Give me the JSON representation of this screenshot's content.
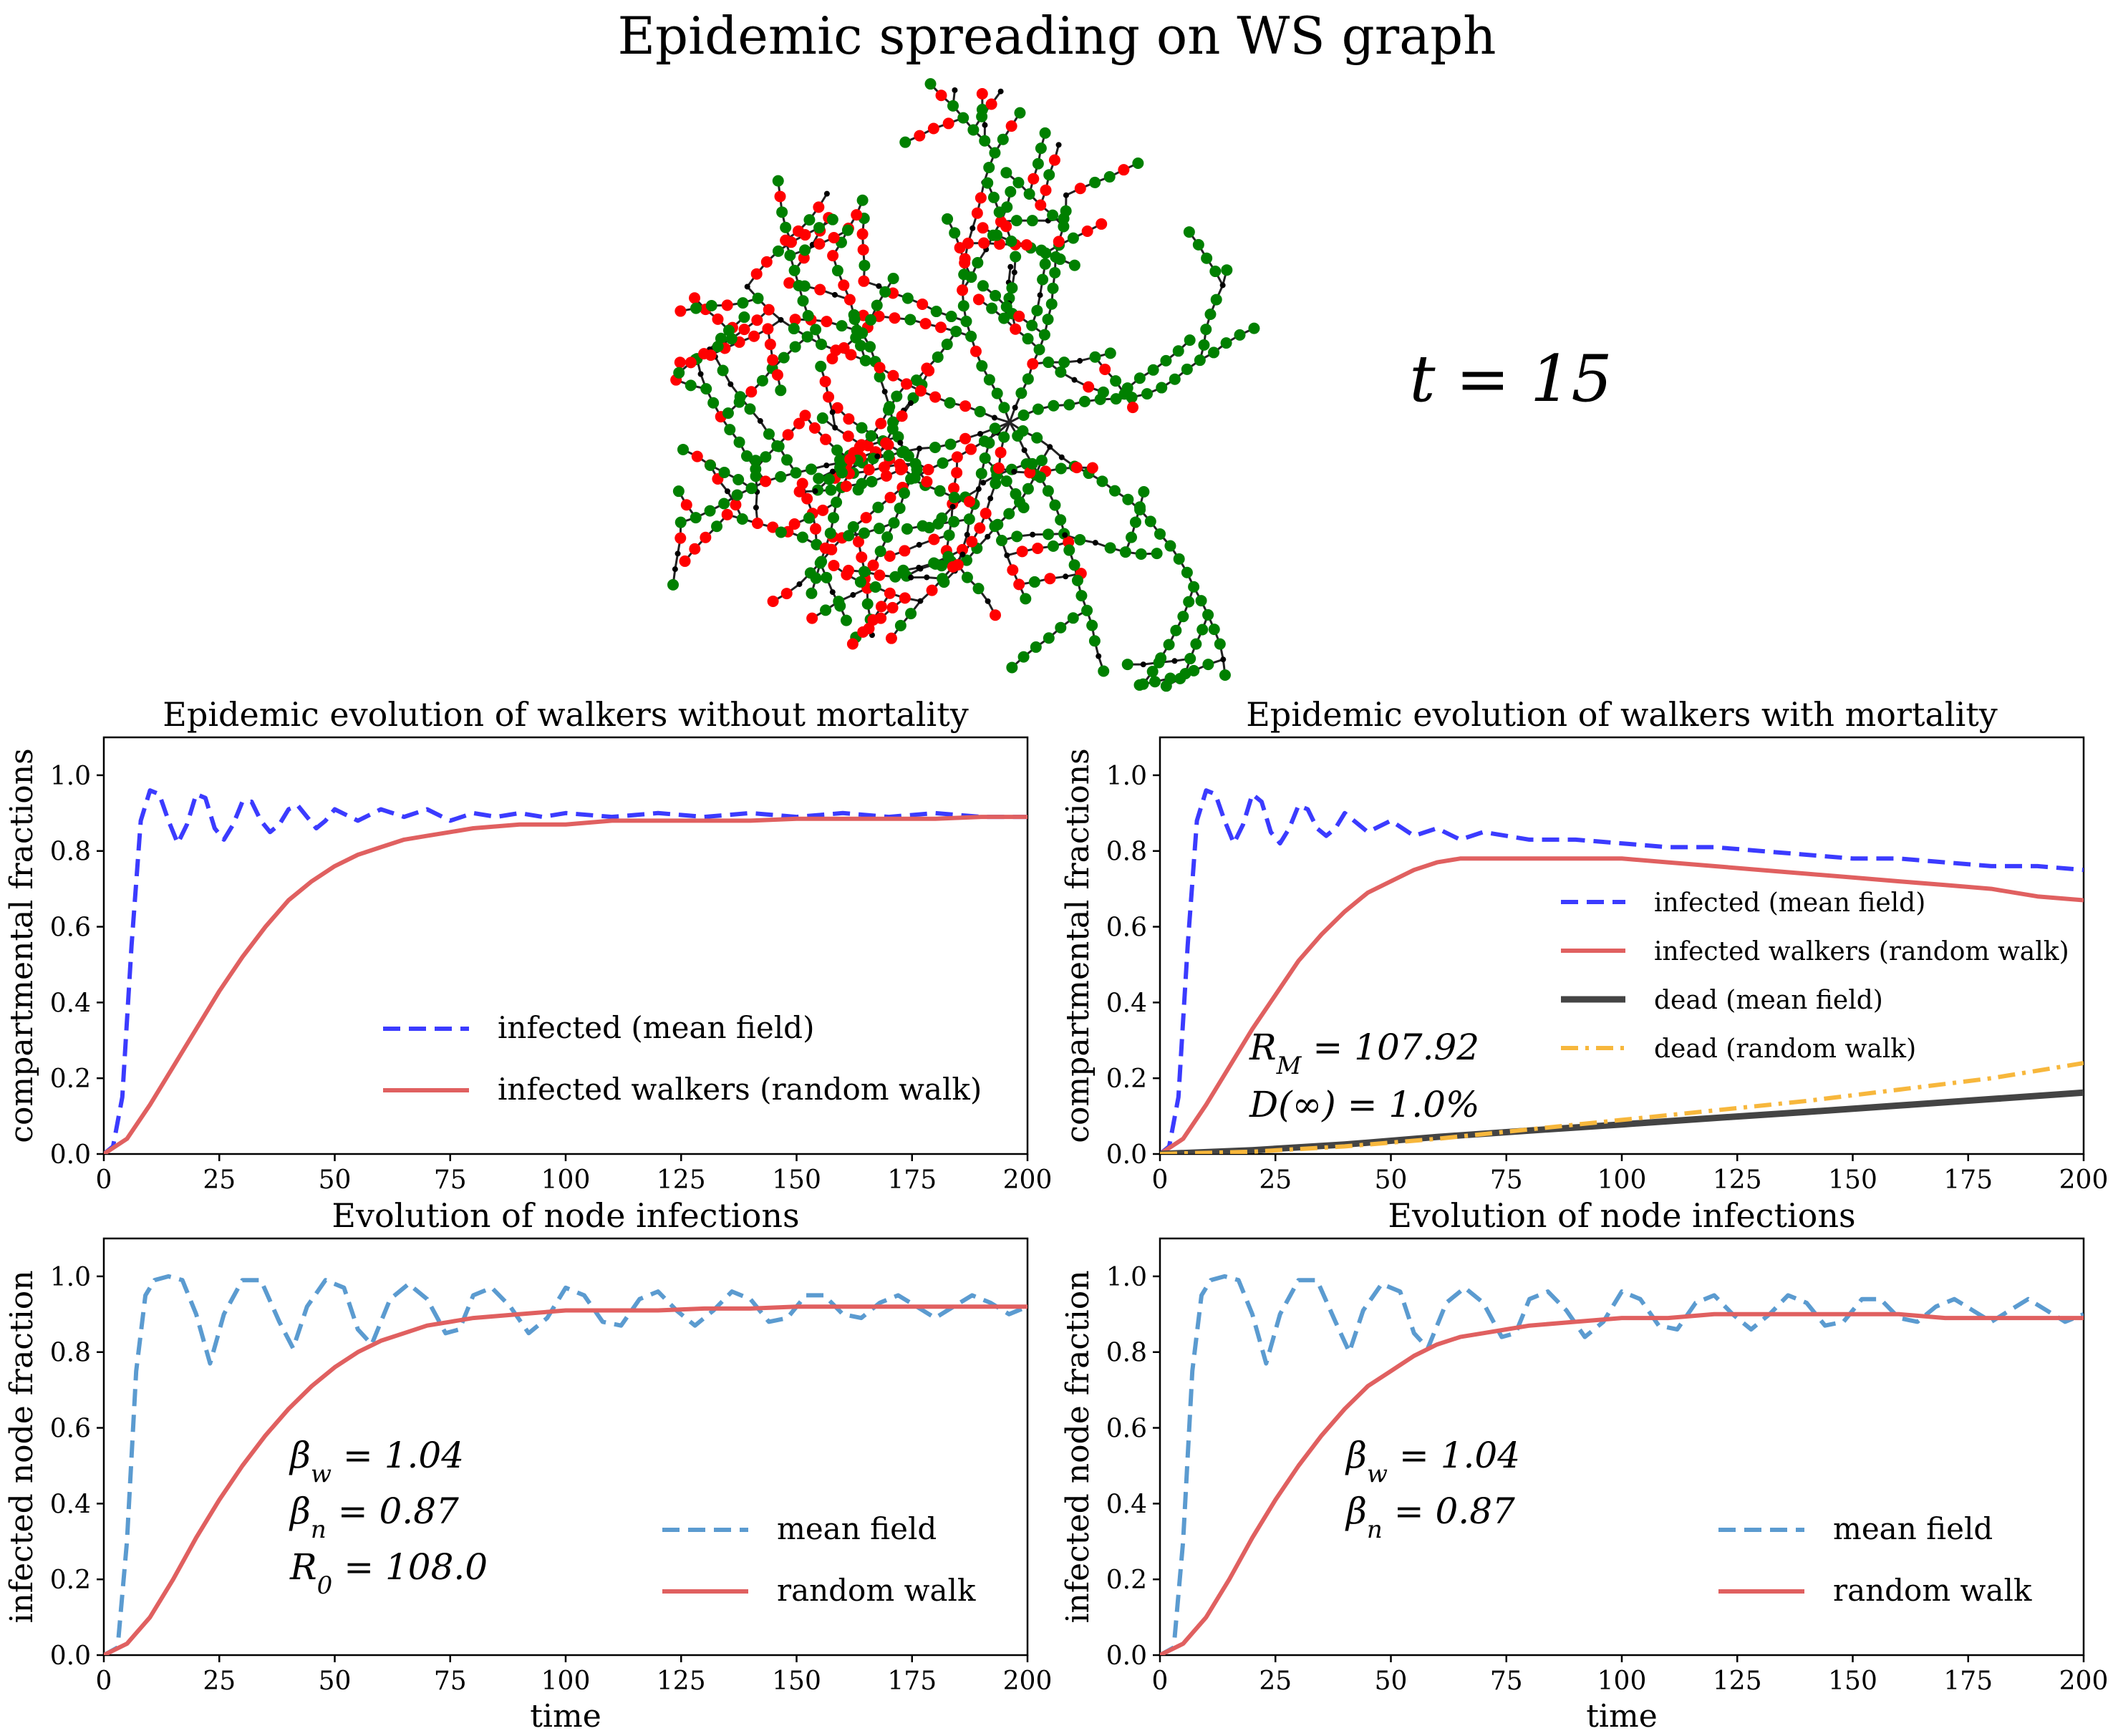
{
  "figure": {
    "title": "Epidemic spreading on WS graph",
    "time_label": "t = 15",
    "graph_icon": "network-graph-visualization",
    "graph_colors": {
      "infected": "#ff0000",
      "recovered": "#008000",
      "susceptible": "#000000"
    }
  },
  "chart_data": [
    {
      "type": "line",
      "title": "Epidemic evolution of walkers without mortality",
      "xlabel": "",
      "ylabel": "compartmental fractions",
      "xlim": [
        0,
        200
      ],
      "ylim": [
        0,
        1.1
      ],
      "xticks": [
        "0",
        "25",
        "50",
        "75",
        "100",
        "125",
        "150",
        "175",
        "200"
      ],
      "yticks": [
        "0.0",
        "0.2",
        "0.4",
        "0.6",
        "0.8",
        "1.0"
      ],
      "legend_position": "lower-right",
      "series": [
        {
          "name": "infected (mean field)",
          "color": "#3b3bff",
          "style": "dashed",
          "x": [
            0,
            2,
            4,
            6,
            8,
            10,
            12,
            14,
            16,
            18,
            20,
            22,
            24,
            26,
            28,
            30,
            32,
            34,
            36,
            38,
            40,
            42,
            44,
            46,
            48,
            50,
            55,
            60,
            65,
            70,
            75,
            80,
            85,
            90,
            95,
            100,
            110,
            120,
            130,
            140,
            150,
            160,
            170,
            180,
            190,
            200
          ],
          "y": [
            0.0,
            0.02,
            0.15,
            0.55,
            0.88,
            0.96,
            0.95,
            0.88,
            0.82,
            0.87,
            0.95,
            0.94,
            0.86,
            0.83,
            0.87,
            0.93,
            0.93,
            0.88,
            0.85,
            0.87,
            0.91,
            0.92,
            0.89,
            0.86,
            0.88,
            0.91,
            0.88,
            0.91,
            0.89,
            0.91,
            0.88,
            0.9,
            0.89,
            0.9,
            0.89,
            0.9,
            0.89,
            0.9,
            0.89,
            0.9,
            0.89,
            0.9,
            0.89,
            0.9,
            0.89,
            0.89
          ]
        },
        {
          "name": "infected walkers (random walk)",
          "color": "#e06060",
          "style": "solid",
          "x": [
            0,
            5,
            10,
            15,
            20,
            25,
            30,
            35,
            40,
            45,
            50,
            55,
            60,
            65,
            70,
            75,
            80,
            90,
            100,
            110,
            120,
            130,
            140,
            150,
            160,
            170,
            180,
            190,
            200
          ],
          "y": [
            0.0,
            0.04,
            0.13,
            0.23,
            0.33,
            0.43,
            0.52,
            0.6,
            0.67,
            0.72,
            0.76,
            0.79,
            0.81,
            0.83,
            0.84,
            0.85,
            0.86,
            0.87,
            0.87,
            0.88,
            0.88,
            0.88,
            0.88,
            0.885,
            0.885,
            0.885,
            0.885,
            0.89,
            0.89
          ]
        }
      ]
    },
    {
      "type": "line",
      "title": "Epidemic evolution of walkers with mortality",
      "xlabel": "",
      "ylabel": "compartmental fractions",
      "xlim": [
        0,
        200
      ],
      "ylim": [
        0,
        1.1
      ],
      "xticks": [
        "0",
        "25",
        "50",
        "75",
        "100",
        "125",
        "150",
        "175",
        "200"
      ],
      "yticks": [
        "0.0",
        "0.2",
        "0.4",
        "0.6",
        "0.8",
        "1.0"
      ],
      "legend_position": "right",
      "annotations": [
        "R_M = 107.92",
        "D(∞) = 1.0%"
      ],
      "series": [
        {
          "name": "infected (mean field)",
          "color": "#3b3bff",
          "style": "dashed",
          "x": [
            0,
            2,
            4,
            6,
            8,
            10,
            12,
            14,
            16,
            18,
            20,
            22,
            24,
            26,
            28,
            30,
            32,
            34,
            36,
            38,
            40,
            45,
            50,
            55,
            60,
            65,
            70,
            80,
            90,
            100,
            110,
            120,
            130,
            140,
            150,
            160,
            170,
            180,
            190,
            200
          ],
          "y": [
            0.0,
            0.02,
            0.15,
            0.55,
            0.88,
            0.96,
            0.95,
            0.88,
            0.82,
            0.87,
            0.95,
            0.93,
            0.85,
            0.82,
            0.86,
            0.92,
            0.91,
            0.86,
            0.84,
            0.86,
            0.9,
            0.85,
            0.88,
            0.84,
            0.86,
            0.83,
            0.85,
            0.83,
            0.83,
            0.82,
            0.81,
            0.81,
            0.8,
            0.79,
            0.78,
            0.78,
            0.77,
            0.76,
            0.76,
            0.75
          ]
        },
        {
          "name": "infected walkers (random walk)",
          "color": "#e06060",
          "style": "solid",
          "x": [
            0,
            5,
            10,
            15,
            20,
            25,
            30,
            35,
            40,
            45,
            50,
            55,
            60,
            65,
            70,
            80,
            90,
            100,
            110,
            120,
            130,
            140,
            150,
            160,
            170,
            180,
            190,
            200
          ],
          "y": [
            0.0,
            0.04,
            0.13,
            0.23,
            0.33,
            0.42,
            0.51,
            0.58,
            0.64,
            0.69,
            0.72,
            0.75,
            0.77,
            0.78,
            0.78,
            0.78,
            0.78,
            0.78,
            0.77,
            0.76,
            0.75,
            0.74,
            0.73,
            0.72,
            0.71,
            0.7,
            0.68,
            0.67
          ]
        },
        {
          "name": "dead (mean field)",
          "color": "#444444",
          "style": "solid-thick",
          "x": [
            0,
            20,
            40,
            60,
            80,
            100,
            120,
            140,
            160,
            180,
            200
          ],
          "y": [
            0.0,
            0.01,
            0.025,
            0.045,
            0.062,
            0.078,
            0.095,
            0.111,
            0.128,
            0.145,
            0.162
          ]
        },
        {
          "name": "dead (random walk)",
          "color": "#f7b73c",
          "style": "dashdot",
          "x": [
            0,
            20,
            40,
            60,
            80,
            100,
            120,
            140,
            160,
            180,
            200
          ],
          "y": [
            0.0,
            0.006,
            0.02,
            0.04,
            0.065,
            0.09,
            0.115,
            0.14,
            0.17,
            0.2,
            0.24
          ]
        }
      ]
    },
    {
      "type": "line",
      "title": "Evolution of node infections",
      "xlabel": "time",
      "ylabel": "infected node fraction",
      "xlim": [
        0,
        200
      ],
      "ylim": [
        0,
        1.1
      ],
      "xticks": [
        "0",
        "25",
        "50",
        "75",
        "100",
        "125",
        "150",
        "175",
        "200"
      ],
      "yticks": [
        "0.0",
        "0.2",
        "0.4",
        "0.6",
        "0.8",
        "1.0"
      ],
      "legend_position": "lower-right",
      "annotations": [
        "β_w = 1.04",
        "β_n = 0.87",
        "R_0 = 108.0"
      ],
      "series": [
        {
          "name": "mean field",
          "color": "#5b9bd0",
          "style": "dashed",
          "x": [
            0,
            3,
            5,
            7,
            9,
            11,
            14,
            17,
            20,
            23,
            26,
            30,
            34,
            38,
            41,
            44,
            48,
            52,
            55,
            58,
            62,
            66,
            70,
            74,
            77,
            80,
            84,
            88,
            92,
            96,
            100,
            104,
            108,
            112,
            116,
            120,
            124,
            128,
            132,
            136,
            140,
            144,
            148,
            152,
            156,
            160,
            164,
            168,
            172,
            176,
            180,
            184,
            188,
            192,
            196,
            200
          ],
          "y": [
            0.0,
            0.02,
            0.3,
            0.75,
            0.95,
            0.99,
            1.0,
            0.99,
            0.9,
            0.77,
            0.9,
            0.99,
            0.99,
            0.88,
            0.81,
            0.92,
            0.99,
            0.97,
            0.86,
            0.82,
            0.94,
            0.98,
            0.94,
            0.85,
            0.86,
            0.95,
            0.97,
            0.92,
            0.85,
            0.89,
            0.97,
            0.95,
            0.88,
            0.87,
            0.94,
            0.96,
            0.91,
            0.87,
            0.91,
            0.96,
            0.94,
            0.88,
            0.89,
            0.95,
            0.95,
            0.9,
            0.89,
            0.93,
            0.95,
            0.92,
            0.89,
            0.92,
            0.95,
            0.93,
            0.9,
            0.92
          ]
        },
        {
          "name": "random walk",
          "color": "#e06060",
          "style": "solid",
          "x": [
            0,
            5,
            10,
            15,
            20,
            25,
            30,
            35,
            40,
            45,
            50,
            55,
            60,
            65,
            70,
            75,
            80,
            90,
            100,
            110,
            120,
            130,
            140,
            150,
            160,
            170,
            180,
            190,
            200
          ],
          "y": [
            0.0,
            0.03,
            0.1,
            0.2,
            0.31,
            0.41,
            0.5,
            0.58,
            0.65,
            0.71,
            0.76,
            0.8,
            0.83,
            0.85,
            0.87,
            0.88,
            0.89,
            0.9,
            0.91,
            0.91,
            0.91,
            0.915,
            0.915,
            0.92,
            0.92,
            0.92,
            0.92,
            0.92,
            0.92
          ]
        }
      ]
    },
    {
      "type": "line",
      "title": "Evolution of node infections",
      "xlabel": "time",
      "ylabel": "infected node fraction",
      "xlim": [
        0,
        200
      ],
      "ylim": [
        0,
        1.1
      ],
      "xticks": [
        "0",
        "25",
        "50",
        "75",
        "100",
        "125",
        "150",
        "175",
        "200"
      ],
      "yticks": [
        "0.0",
        "0.2",
        "0.4",
        "0.6",
        "0.8",
        "1.0"
      ],
      "legend_position": "lower-right",
      "annotations": [
        "β_w = 1.04",
        "β_n = 0.87"
      ],
      "series": [
        {
          "name": "mean field",
          "color": "#5b9bd0",
          "style": "dashed",
          "x": [
            0,
            3,
            5,
            7,
            9,
            11,
            14,
            17,
            20,
            23,
            26,
            30,
            34,
            38,
            41,
            44,
            48,
            52,
            55,
            58,
            62,
            66,
            70,
            74,
            77,
            80,
            84,
            88,
            92,
            96,
            100,
            104,
            108,
            112,
            116,
            120,
            124,
            128,
            132,
            136,
            140,
            144,
            148,
            152,
            156,
            160,
            164,
            168,
            172,
            176,
            180,
            184,
            188,
            192,
            196,
            200
          ],
          "y": [
            0.0,
            0.02,
            0.3,
            0.75,
            0.95,
            0.99,
            1.0,
            0.99,
            0.9,
            0.77,
            0.9,
            0.99,
            0.99,
            0.88,
            0.8,
            0.91,
            0.98,
            0.96,
            0.85,
            0.81,
            0.93,
            0.97,
            0.93,
            0.84,
            0.85,
            0.94,
            0.96,
            0.91,
            0.84,
            0.88,
            0.96,
            0.94,
            0.87,
            0.86,
            0.93,
            0.95,
            0.9,
            0.86,
            0.9,
            0.95,
            0.93,
            0.87,
            0.88,
            0.94,
            0.94,
            0.89,
            0.88,
            0.92,
            0.94,
            0.91,
            0.88,
            0.91,
            0.94,
            0.91,
            0.88,
            0.9
          ]
        },
        {
          "name": "random walk",
          "color": "#e06060",
          "style": "solid",
          "x": [
            0,
            5,
            10,
            15,
            20,
            25,
            30,
            35,
            40,
            45,
            50,
            55,
            60,
            65,
            70,
            75,
            80,
            90,
            100,
            110,
            120,
            130,
            140,
            150,
            160,
            170,
            180,
            190,
            200
          ],
          "y": [
            0.0,
            0.03,
            0.1,
            0.2,
            0.31,
            0.41,
            0.5,
            0.58,
            0.65,
            0.71,
            0.75,
            0.79,
            0.82,
            0.84,
            0.85,
            0.86,
            0.87,
            0.88,
            0.89,
            0.89,
            0.9,
            0.9,
            0.9,
            0.9,
            0.9,
            0.89,
            0.89,
            0.89,
            0.89
          ]
        }
      ]
    }
  ]
}
